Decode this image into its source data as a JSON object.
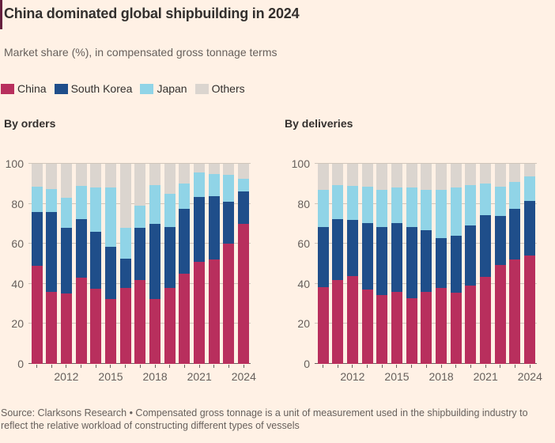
{
  "accent_bar_color": "#66203E",
  "colors": {
    "background": "#FFF1E5",
    "title_text": "#33302E",
    "secondary_text": "#66605C",
    "gridline": "#CFC5BA",
    "axis_line": "#66605C",
    "china": "#B82F5D",
    "south_korea": "#1F4E8A",
    "japan": "#90D4E7",
    "others": "#DBD5CF"
  },
  "header": {
    "title": "China dominated global shipbuilding in 2024",
    "subtitle": "Market share (%), in compensated gross tonnage terms"
  },
  "legend": [
    {
      "label": "China",
      "color": "#B82F5D"
    },
    {
      "label": "South Korea",
      "color": "#1F4E8A"
    },
    {
      "label": "Japan",
      "color": "#90D4E7"
    },
    {
      "label": "Others",
      "color": "#DBD5CF"
    }
  ],
  "footer": {
    "source": "Source: Clarksons Research • Compensated gross tonnage is a unit of measurement used in the shipbuilding industry to reflect the relative workload of constructing different types of vessels"
  },
  "chart_data": [
    {
      "type": "bar",
      "stacked": true,
      "title": "By orders",
      "unit": "% market share",
      "categories": [
        "2010",
        "2011",
        "2012",
        "2013",
        "2014",
        "2015",
        "2016",
        "2017",
        "2018",
        "2019",
        "2020",
        "2021",
        "2022",
        "2023",
        "2024"
      ],
      "x_tick_labels": [
        "2012",
        "2015",
        "2018",
        "2021",
        "2024"
      ],
      "x_tick_indices": [
        2,
        5,
        8,
        11,
        14
      ],
      "ylim": [
        0,
        100
      ],
      "yticks": [
        0,
        20,
        40,
        60,
        80,
        100
      ],
      "grid": true,
      "legend_position": "top",
      "series": [
        {
          "name": "China",
          "color": "#B82F5D",
          "values": [
            49,
            36,
            35,
            43,
            37.5,
            32.5,
            38,
            42,
            32.5,
            38,
            45,
            51,
            52,
            60,
            70
          ]
        },
        {
          "name": "South Korea",
          "color": "#1F4E8A",
          "values": [
            27,
            40,
            33,
            29.5,
            28.5,
            26,
            14.5,
            26,
            37.5,
            30.5,
            32.5,
            32.5,
            32,
            21,
            16
          ]
        },
        {
          "name": "Japan",
          "color": "#90D4E7",
          "values": [
            12.5,
            11.5,
            15,
            16.5,
            22,
            29.5,
            15.5,
            11,
            19.5,
            16.5,
            12.5,
            12,
            11,
            13.5,
            6.5
          ]
        },
        {
          "name": "Others",
          "color": "#DBD5CF",
          "values": [
            11.5,
            12.5,
            17,
            11,
            12,
            12,
            32,
            21,
            10.5,
            15,
            10,
            4.5,
            5,
            5.5,
            7.5
          ]
        }
      ]
    },
    {
      "type": "bar",
      "stacked": true,
      "title": "By deliveries",
      "unit": "% market share",
      "categories": [
        "2010",
        "2011",
        "2012",
        "2013",
        "2014",
        "2015",
        "2016",
        "2017",
        "2018",
        "2019",
        "2020",
        "2021",
        "2022",
        "2023",
        "2024"
      ],
      "x_tick_labels": [
        "2012",
        "2015",
        "2018",
        "2021",
        "2024"
      ],
      "x_tick_indices": [
        2,
        5,
        8,
        11,
        14
      ],
      "ylim": [
        0,
        100
      ],
      "yticks": [
        0,
        20,
        40,
        60,
        80,
        100
      ],
      "grid": true,
      "legend_position": "top",
      "series": [
        {
          "name": "China",
          "color": "#B82F5D",
          "values": [
            38.5,
            42,
            44,
            37,
            34.5,
            36,
            33,
            36,
            38,
            35.5,
            39,
            43.5,
            49.5,
            52,
            54
          ]
        },
        {
          "name": "South Korea",
          "color": "#1F4E8A",
          "values": [
            30,
            30.5,
            28,
            33.5,
            34,
            34.5,
            35.5,
            31,
            25,
            28.5,
            30,
            31,
            24.5,
            25.5,
            27.5
          ]
        },
        {
          "name": "Japan",
          "color": "#90D4E7",
          "values": [
            18.5,
            17,
            17,
            18,
            18.5,
            17.5,
            19.5,
            20,
            24,
            24,
            20.5,
            15.5,
            14.5,
            13.5,
            12
          ]
        },
        {
          "name": "Others",
          "color": "#DBD5CF",
          "values": [
            13,
            10.5,
            11,
            11.5,
            13,
            12,
            12,
            13,
            13,
            12,
            10.5,
            10,
            11.5,
            9,
            6.5
          ]
        }
      ]
    }
  ]
}
